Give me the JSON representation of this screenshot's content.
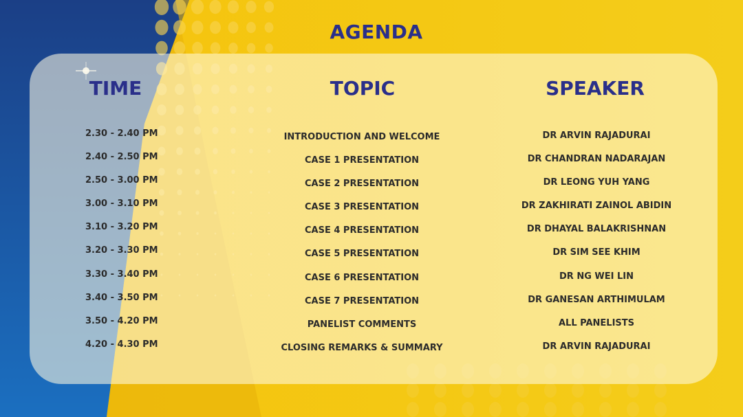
{
  "title": "AGENDA",
  "headers": {
    "time": "TIME",
    "topic": "TOPIC",
    "speaker": "SPEAKER"
  },
  "rows": [
    {
      "time": "2.30 - 2.40 PM",
      "topic": "INTRODUCTION AND WELCOME",
      "speaker": "DR ARVIN RAJADURAI"
    },
    {
      "time": "2.40 - 2.50 PM",
      "topic": "CASE 1 PRESENTATION",
      "speaker": "DR CHANDRAN NADARAJAN"
    },
    {
      "time": "2.50 - 3.00 PM",
      "topic": "CASE 2 PRESENTATION",
      "speaker": "DR LEONG YUH YANG"
    },
    {
      "time": "3.00 - 3.10 PM",
      "topic": "CASE 3 PRESENTATION",
      "speaker": "DR ZAKHIRATI ZAINOL ABIDIN"
    },
    {
      "time": "3.10 - 3.20 PM",
      "topic": "CASE 4 PRESENTATION",
      "speaker": "DR DHAYAL BALAKRISHNAN"
    },
    {
      "time": "3.20 - 3.30 PM",
      "topic": "CASE 5 PRESENTATION",
      "speaker": "DR SIM SEE KHIM"
    },
    {
      "time": "3.30 - 3.40 PM",
      "topic": "CASE 6 PRESENTATION",
      "speaker": "DR NG WEI LIN"
    },
    {
      "time": "3.40 - 3.50 PM",
      "topic": "CASE 7 PRESENTATION",
      "speaker": "DR GANESAN ARTHIMULAM"
    },
    {
      "time": "3.50 - 4.20 PM",
      "topic": "PANELIST COMMENTS",
      "speaker": "ALL PANELISTS"
    },
    {
      "time": "4.20 - 4.30 PM",
      "topic": "CLOSING REMARKS & SUMMARY",
      "speaker": "DR ARVIN RAJADURAI"
    }
  ],
  "colors": {
    "blue": "#1a56a6",
    "yellow": "#f2c80f",
    "heading": "#2a2f8a"
  }
}
